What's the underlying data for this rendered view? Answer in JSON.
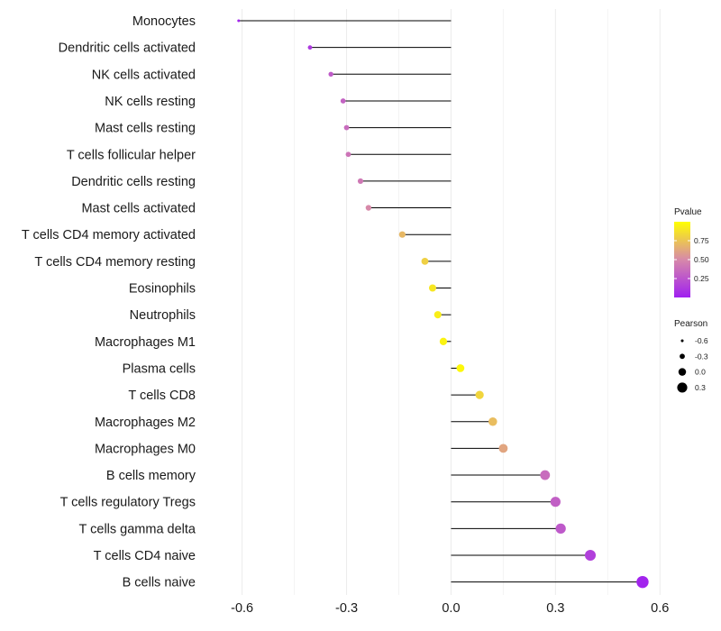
{
  "chart_data": {
    "type": "lollipop",
    "title": "",
    "xlabel": "",
    "ylabel": "",
    "xlim": [
      -0.7,
      0.62
    ],
    "xticks": [
      -0.6,
      -0.3,
      0.0,
      0.3,
      0.6
    ],
    "xtick_labels": [
      "-0.6",
      "-0.3",
      "0.0",
      "0.3",
      "0.6"
    ],
    "grid": true,
    "categories": [
      "Monocytes",
      "Dendritic cells activated",
      "NK cells activated",
      "NK cells resting",
      "Mast cells resting",
      "T cells follicular helper",
      "Dendritic cells resting",
      "Mast cells activated",
      "T cells CD4 memory activated",
      "T cells CD4 memory resting",
      "Eosinophils",
      "Neutrophils",
      "Macrophages M1",
      "Plasma cells",
      "T cells CD8",
      "Macrophages M2",
      "Macrophages M0",
      "B cells memory",
      "T cells regulatory  Tregs ",
      "T cells gamma delta",
      "T cells CD4 naive",
      "B cells naive"
    ],
    "pearson": [
      -0.61,
      -0.405,
      -0.345,
      -0.31,
      -0.3,
      -0.295,
      -0.26,
      -0.237,
      -0.14,
      -0.075,
      -0.053,
      -0.038,
      -0.022,
      0.027,
      0.082,
      0.12,
      0.15,
      0.27,
      0.3,
      0.315,
      0.4,
      0.55
    ],
    "pvalue": [
      0.02,
      0.12,
      0.28,
      0.32,
      0.36,
      0.4,
      0.42,
      0.5,
      0.7,
      0.8,
      0.9,
      0.93,
      0.95,
      0.97,
      0.82,
      0.72,
      0.62,
      0.36,
      0.3,
      0.27,
      0.15,
      0.02
    ],
    "color_legend": {
      "title": "Pvalue",
      "ticks": [
        0.25,
        0.5,
        0.75
      ],
      "tick_labels": [
        "0.25",
        "0.50",
        "0.75"
      ],
      "range": [
        0.0,
        1.0
      ],
      "low_color": "#a020f0",
      "mid_color": "#d789a9",
      "high_color": "#ffff00"
    },
    "size_legend": {
      "title": "Pearson",
      "values": [
        -0.6,
        -0.3,
        0.0,
        0.3
      ],
      "labels": [
        "-0.6",
        "-0.3",
        "0.0",
        "0.3"
      ]
    },
    "legend_position": "right"
  }
}
